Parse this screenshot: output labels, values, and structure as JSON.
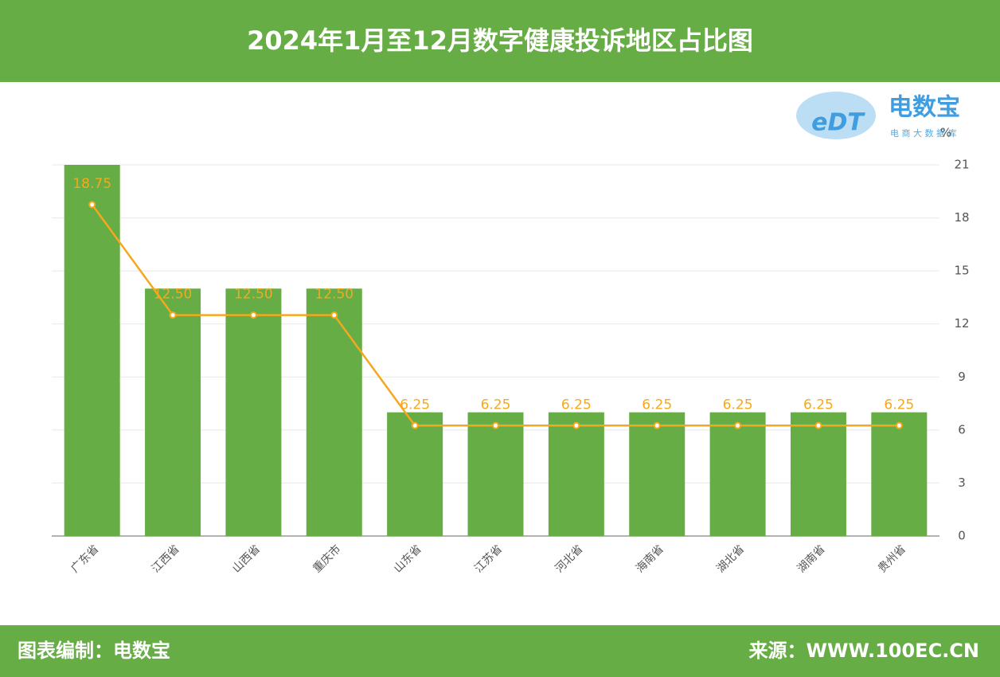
{
  "chart_data": {
    "type": "bar_line",
    "title": "2024年1月至12月数字健康投诉地区占比图",
    "categories": [
      "广东省",
      "江西省",
      "山西省",
      "重庆市",
      "山东省",
      "江苏省",
      "河北省",
      "海南省",
      "湖北省",
      "湖南省",
      "贵州省"
    ],
    "series": [
      {
        "type": "bar",
        "color": "#67ad45",
        "values": [
          21,
          14,
          14,
          14,
          7,
          7,
          7,
          7,
          7,
          7,
          7
        ]
      },
      {
        "type": "line",
        "color": "#f5a81e",
        "values": [
          18.75,
          12.5,
          12.5,
          12.5,
          6.25,
          6.25,
          6.25,
          6.25,
          6.25,
          6.25,
          6.25
        ],
        "value_labels": [
          "18.75",
          "12.50",
          "12.50",
          "12.50",
          "6.25",
          "6.25",
          "6.25",
          "6.25",
          "6.25",
          "6.25",
          "6.25"
        ]
      }
    ],
    "y_unit": "%",
    "ylim": [
      0,
      21
    ],
    "yticks": [
      0,
      3,
      6,
      9,
      12,
      15,
      18,
      21
    ],
    "grid": true
  },
  "logo": {
    "mark": "eDT",
    "name": "电数宝",
    "tagline": "电 商 大 数 据 库"
  },
  "footer": {
    "left": "图表编制：电数宝",
    "right": "来源：WWW.100EC.CN"
  }
}
